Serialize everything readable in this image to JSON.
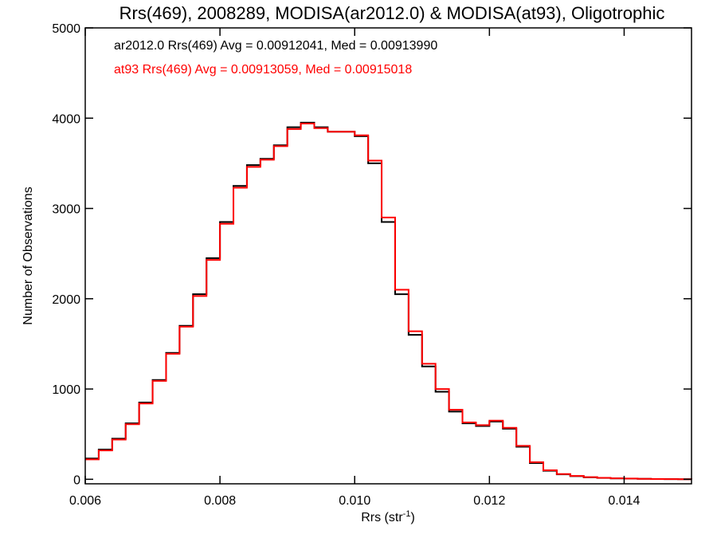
{
  "chart_data": {
    "type": "line",
    "title": "Rrs(469), 2008289, MODISA(ar2012.0) & MODISA(at93), Oligotrophic",
    "xlabel": "Rrs (str",
    "xlabel_sup": "-1",
    "xlabel_end": ")",
    "ylabel": "Number of Observations",
    "xlim": [
      0.006,
      0.015
    ],
    "ylim": [
      -50,
      5000
    ],
    "xticks": [
      0.006,
      0.008,
      0.01,
      0.012,
      0.014
    ],
    "xtick_labels": [
      "0.006",
      "0.008",
      "0.010",
      "0.012",
      "0.014"
    ],
    "yticks": [
      0,
      1000,
      2000,
      3000,
      4000,
      5000
    ],
    "ytick_labels": [
      "0",
      "1000",
      "2000",
      "3000",
      "4000",
      "5000"
    ],
    "grid": false,
    "annotations": [
      {
        "text": "ar2012.0 Rrs(469) Avg = 0.00912041, Med = 0.00913990",
        "color": "#000000"
      },
      {
        "text": "at93 Rrs(469) Avg = 0.00913059, Med = 0.00915018",
        "color": "#ff0000"
      }
    ],
    "series": [
      {
        "color": "#000000",
        "style": "step",
        "x": [
          0.006,
          0.0062,
          0.0064,
          0.0066,
          0.0068,
          0.007,
          0.0072,
          0.0074,
          0.0076,
          0.0078,
          0.008,
          0.0082,
          0.0084,
          0.0086,
          0.0088,
          0.009,
          0.0092,
          0.0094,
          0.0096,
          0.0098,
          0.01,
          0.0102,
          0.0104,
          0.0106,
          0.0108,
          0.011,
          0.0112,
          0.0114,
          0.0116,
          0.0118,
          0.012,
          0.0122,
          0.0124,
          0.0126,
          0.0128,
          0.013,
          0.0132,
          0.0134,
          0.0136,
          0.0138,
          0.014,
          0.0142,
          0.0144,
          0.0146,
          0.0148,
          0.015
        ],
        "y": [
          230,
          330,
          450,
          620,
          850,
          1100,
          1400,
          1700,
          2050,
          2450,
          2850,
          3250,
          3480,
          3550,
          3700,
          3900,
          3950,
          3900,
          3850,
          3850,
          3800,
          3500,
          2850,
          2050,
          1600,
          1250,
          970,
          750,
          620,
          590,
          640,
          560,
          360,
          180,
          95,
          55,
          35,
          22,
          15,
          10,
          7,
          5,
          3,
          2,
          1,
          0
        ]
      },
      {
        "color": "#ff0000",
        "style": "step",
        "x": [
          0.006,
          0.0062,
          0.0064,
          0.0066,
          0.0068,
          0.007,
          0.0072,
          0.0074,
          0.0076,
          0.0078,
          0.008,
          0.0082,
          0.0084,
          0.0086,
          0.0088,
          0.009,
          0.0092,
          0.0094,
          0.0096,
          0.0098,
          0.01,
          0.0102,
          0.0104,
          0.0106,
          0.0108,
          0.011,
          0.0112,
          0.0114,
          0.0116,
          0.0118,
          0.012,
          0.0122,
          0.0124,
          0.0126,
          0.0128,
          0.013,
          0.0132,
          0.0134,
          0.0136,
          0.0138,
          0.014,
          0.0142,
          0.0144,
          0.0146,
          0.0148,
          0.015
        ],
        "y": [
          220,
          320,
          440,
          610,
          840,
          1090,
          1390,
          1690,
          2030,
          2430,
          2830,
          3230,
          3460,
          3540,
          3690,
          3880,
          3940,
          3890,
          3850,
          3850,
          3810,
          3530,
          2900,
          2100,
          1640,
          1280,
          1000,
          770,
          630,
          600,
          650,
          570,
          370,
          190,
          100,
          58,
          37,
          24,
          16,
          11,
          8,
          5,
          3,
          2,
          1,
          0
        ]
      }
    ]
  }
}
